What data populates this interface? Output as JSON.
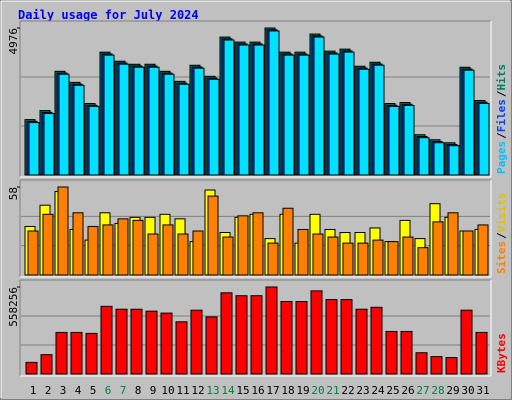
{
  "chart_data": [
    {
      "type": "bar",
      "title": "Daily usage for July 2024",
      "ylim": [
        0,
        4976
      ],
      "yticks": [
        4976
      ],
      "legend_separator": "/",
      "series": [
        {
          "name": "Hits",
          "color": "#00805c",
          "label_color": "#00805c",
          "values": [
            1875,
            2181,
            3510,
            3136,
            2420,
            4158,
            3851,
            3749,
            3749,
            3510,
            3170,
            3715,
            3340,
            4669,
            4499,
            4499,
            4976,
            4158,
            4158,
            4771,
            4192,
            4260,
            3681,
            3817,
            2420,
            2454,
            1363,
            1193,
            1091,
            3647,
            2522
          ]
        },
        {
          "name": "Files",
          "color": "#0040ff",
          "label_color": "#0040ff",
          "values": [
            1815,
            2121,
            3450,
            3076,
            2360,
            4098,
            3791,
            3689,
            3689,
            3450,
            3110,
            3655,
            3280,
            4609,
            4439,
            4439,
            4916,
            4098,
            4098,
            4711,
            4132,
            4200,
            3621,
            3757,
            2360,
            2394,
            1303,
            1133,
            1031,
            3587,
            2462
          ]
        },
        {
          "name": "Pages",
          "color": "#00e0ff",
          "label_color": "#00c0ff",
          "values": [
            1775,
            2081,
            3410,
            3036,
            2320,
            4058,
            3751,
            3649,
            3649,
            3410,
            3070,
            3615,
            3240,
            4569,
            4399,
            4399,
            4876,
            4058,
            4058,
            4671,
            4092,
            4160,
            3581,
            3717,
            2320,
            2354,
            1263,
            1093,
            991,
            3547,
            2422
          ]
        }
      ]
    },
    {
      "type": "bar",
      "ylim": [
        0,
        58
      ],
      "yticks": [
        58
      ],
      "legend_separator": "/",
      "series": [
        {
          "name": "Visits",
          "color": "#ffff00",
          "label_color": "#e0c000",
          "values": [
            32,
            46,
            55,
            30,
            23,
            41,
            34,
            38,
            38,
            40,
            37,
            22,
            56,
            28,
            38,
            40,
            24,
            40,
            21,
            40,
            30,
            28,
            28,
            31,
            22,
            36,
            24,
            47,
            38,
            29,
            30
          ]
        },
        {
          "name": "Sites",
          "color": "#ff8000",
          "label_color": "#ff8000",
          "values": [
            29,
            40,
            58,
            41,
            32,
            33,
            37,
            36,
            27,
            33,
            27,
            29,
            52,
            25,
            39,
            41,
            21,
            44,
            30,
            27,
            25,
            21,
            21,
            23,
            22,
            25,
            18,
            35,
            41,
            29,
            33
          ]
        }
      ]
    },
    {
      "type": "bar",
      "ylim": [
        0,
        558256
      ],
      "yticks": [
        558256
      ],
      "categories": [
        "1",
        "2",
        "3",
        "4",
        "5",
        "6",
        "7",
        "8",
        "9",
        "10",
        "11",
        "12",
        "13",
        "14",
        "15",
        "16",
        "17",
        "18",
        "19",
        "20",
        "21",
        "22",
        "23",
        "24",
        "25",
        "26",
        "27",
        "28",
        "29",
        "30",
        "31"
      ],
      "category_colors": [
        "#000",
        "#000",
        "#000",
        "#000",
        "#000",
        "#008040",
        "#008040",
        "#000",
        "#000",
        "#000",
        "#000",
        "#000",
        "#008040",
        "#008040",
        "#000",
        "#000",
        "#000",
        "#000",
        "#000",
        "#008040",
        "#008040",
        "#000",
        "#000",
        "#000",
        "#000",
        "#000",
        "#008040",
        "#008040",
        "#000",
        "#000",
        "#000"
      ],
      "series": [
        {
          "name": "KBytes",
          "color": "#ff0000",
          "label_color": "#ff0000",
          "values": [
            74434,
            124057,
            266722,
            266722,
            260519,
            434199,
            415589,
            415589,
            403188,
            390779,
            334954,
            409391,
            365967,
            521039,
            502430,
            502430,
            558256,
            465213,
            465213,
            533444,
            477620,
            477620,
            415589,
            428000,
            272925,
            272925,
            136462,
            111651,
            105448,
            409391,
            266722
          ]
        }
      ]
    }
  ]
}
